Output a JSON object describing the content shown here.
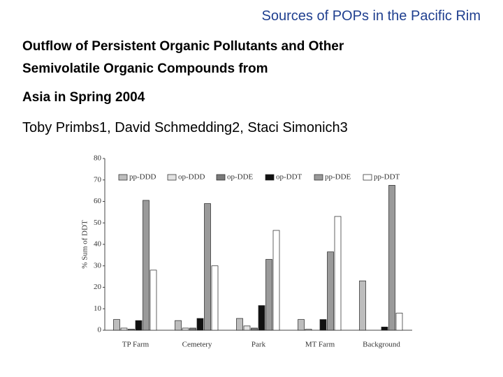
{
  "header": "Sources of POPs in the Pacific Rim",
  "title_lines": [
    "Outflow of Persistent Organic Pollutants and Other",
    "Semivolatile Organic Compounds from",
    "Asia in Spring 2004"
  ],
  "authors": "Toby Primbs1, David Schmedding2, Staci Simonich3",
  "chart_data": {
    "type": "bar",
    "y_label": "% Sum of DDT",
    "categories": [
      "TP Farm",
      "Cemetery",
      "Park",
      "MT Farm",
      "Background"
    ],
    "series": [
      {
        "name": "pp-DDD",
        "color": "#bdbdbd",
        "values": [
          5,
          4.5,
          5.5,
          5,
          23
        ]
      },
      {
        "name": "op-DDD",
        "color": "#e2e2e2",
        "values": [
          1,
          1,
          2,
          0.5,
          0
        ]
      },
      {
        "name": "op-DDE",
        "color": "#7a7a7a",
        "values": [
          0.5,
          1,
          1,
          0,
          0
        ]
      },
      {
        "name": "op-DDT",
        "color": "#111111",
        "values": [
          4.5,
          5.5,
          11.5,
          5,
          1.5
        ]
      },
      {
        "name": "pp-DDE",
        "color": "#9a9a9a",
        "values": [
          60.5,
          59,
          33,
          36.5,
          67.5
        ]
      },
      {
        "name": "pp-DDT",
        "color": "#ffffff",
        "values": [
          28,
          30,
          46.5,
          53,
          8
        ]
      }
    ],
    "ylim": [
      0,
      80
    ],
    "yticks": [
      0,
      10,
      20,
      30,
      40,
      50,
      60,
      70,
      80
    ],
    "grid": false,
    "legend": "top"
  }
}
